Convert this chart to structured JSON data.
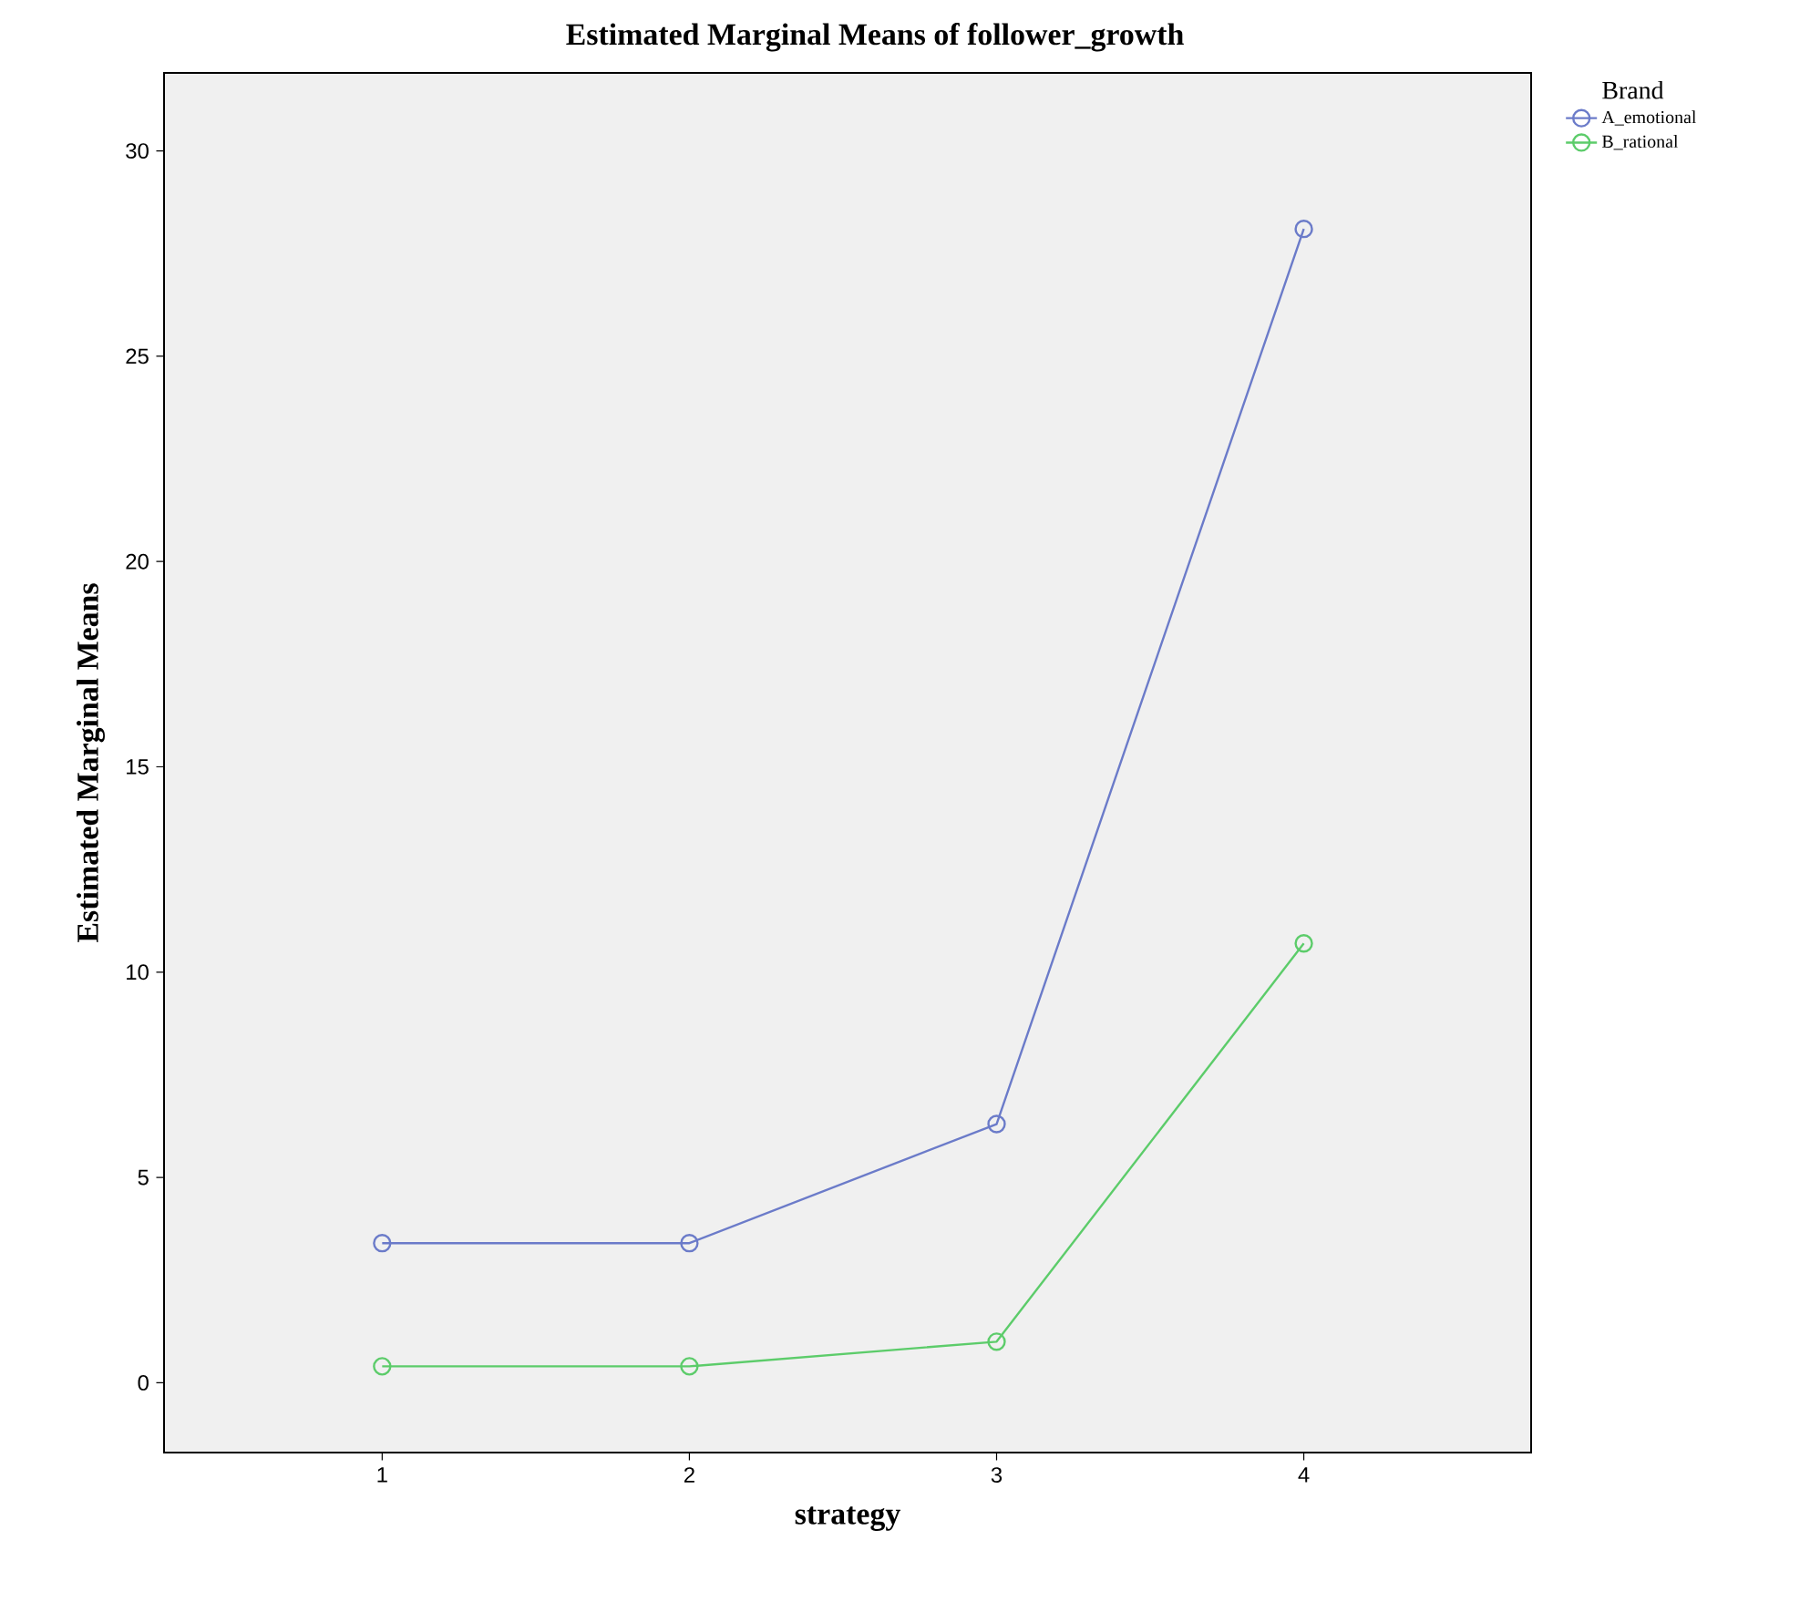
{
  "chart_data": {
    "type": "line",
    "title": "Estimated Marginal Means of follower_growth",
    "xlabel": "strategy",
    "ylabel": "Estimated Marginal Means",
    "legend_title": "Brand",
    "categories": [
      "1",
      "2",
      "3",
      "4"
    ],
    "series": [
      {
        "name": "A_emotional",
        "color": "#6b7bc9",
        "values": [
          3.4,
          3.4,
          6.3,
          28.1
        ]
      },
      {
        "name": "B_rational",
        "color": "#5ccc6a",
        "values": [
          0.4,
          0.4,
          1.0,
          10.7
        ]
      }
    ],
    "ylim": [
      -1.7,
      31.9
    ],
    "yticks": [
      0,
      5,
      10,
      15,
      20,
      25,
      30
    ],
    "grid": false,
    "legend": "top right",
    "marker": "circle",
    "line_style": "solid"
  }
}
